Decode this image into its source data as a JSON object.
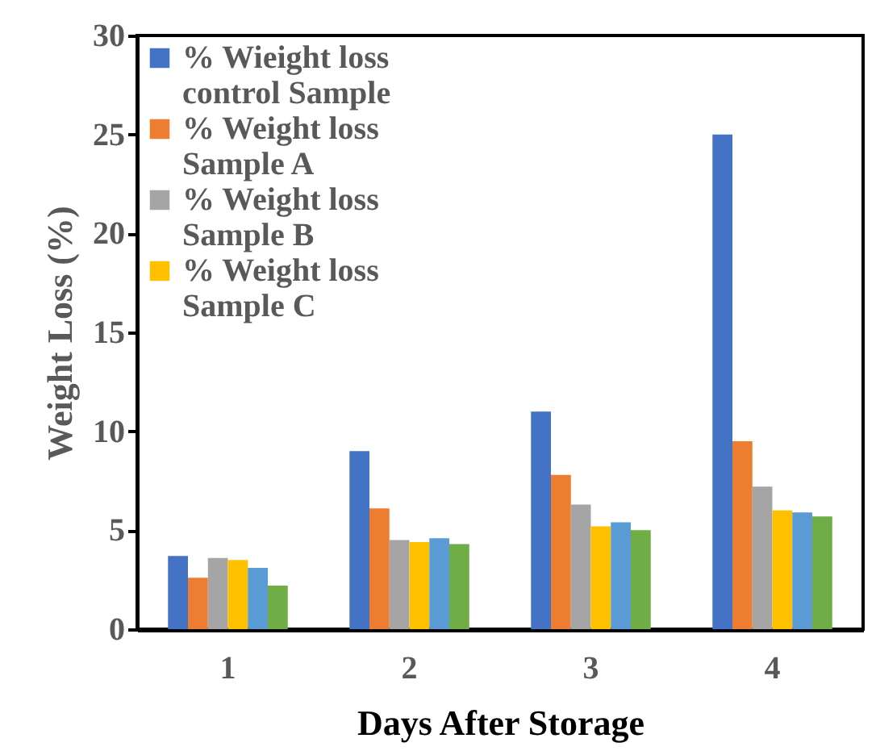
{
  "chart_data": {
    "type": "bar",
    "xlabel": "Days After Storage",
    "ylabel": "Weight Loss (%)",
    "categories": [
      "1",
      "2",
      "3",
      "4"
    ],
    "series": [
      {
        "name": "% Wieight loss control Sample",
        "color": "#4472c4",
        "values": [
          3.7,
          9.0,
          11.0,
          25.0
        ]
      },
      {
        "name": "% Weight loss Sample A",
        "color": "#ed7d31",
        "values": [
          2.6,
          6.1,
          7.8,
          9.5
        ]
      },
      {
        "name": "% Weight loss Sample B",
        "color": "#a5a5a5",
        "values": [
          3.6,
          4.5,
          6.3,
          7.2
        ]
      },
      {
        "name": "% Weight loss Sample C",
        "color": "#ffc000",
        "values": [
          3.5,
          4.4,
          5.2,
          6.0
        ]
      },
      {
        "color": "#5b9bd5",
        "values": [
          3.1,
          4.6,
          5.4,
          5.9
        ]
      },
      {
        "color": "#70ad47",
        "values": [
          2.2,
          4.3,
          5.0,
          5.7
        ]
      }
    ],
    "ylim": [
      0,
      30
    ],
    "yticks": [
      0,
      5,
      10,
      15,
      20,
      25,
      30
    ],
    "grid": false,
    "legend": "top left"
  }
}
